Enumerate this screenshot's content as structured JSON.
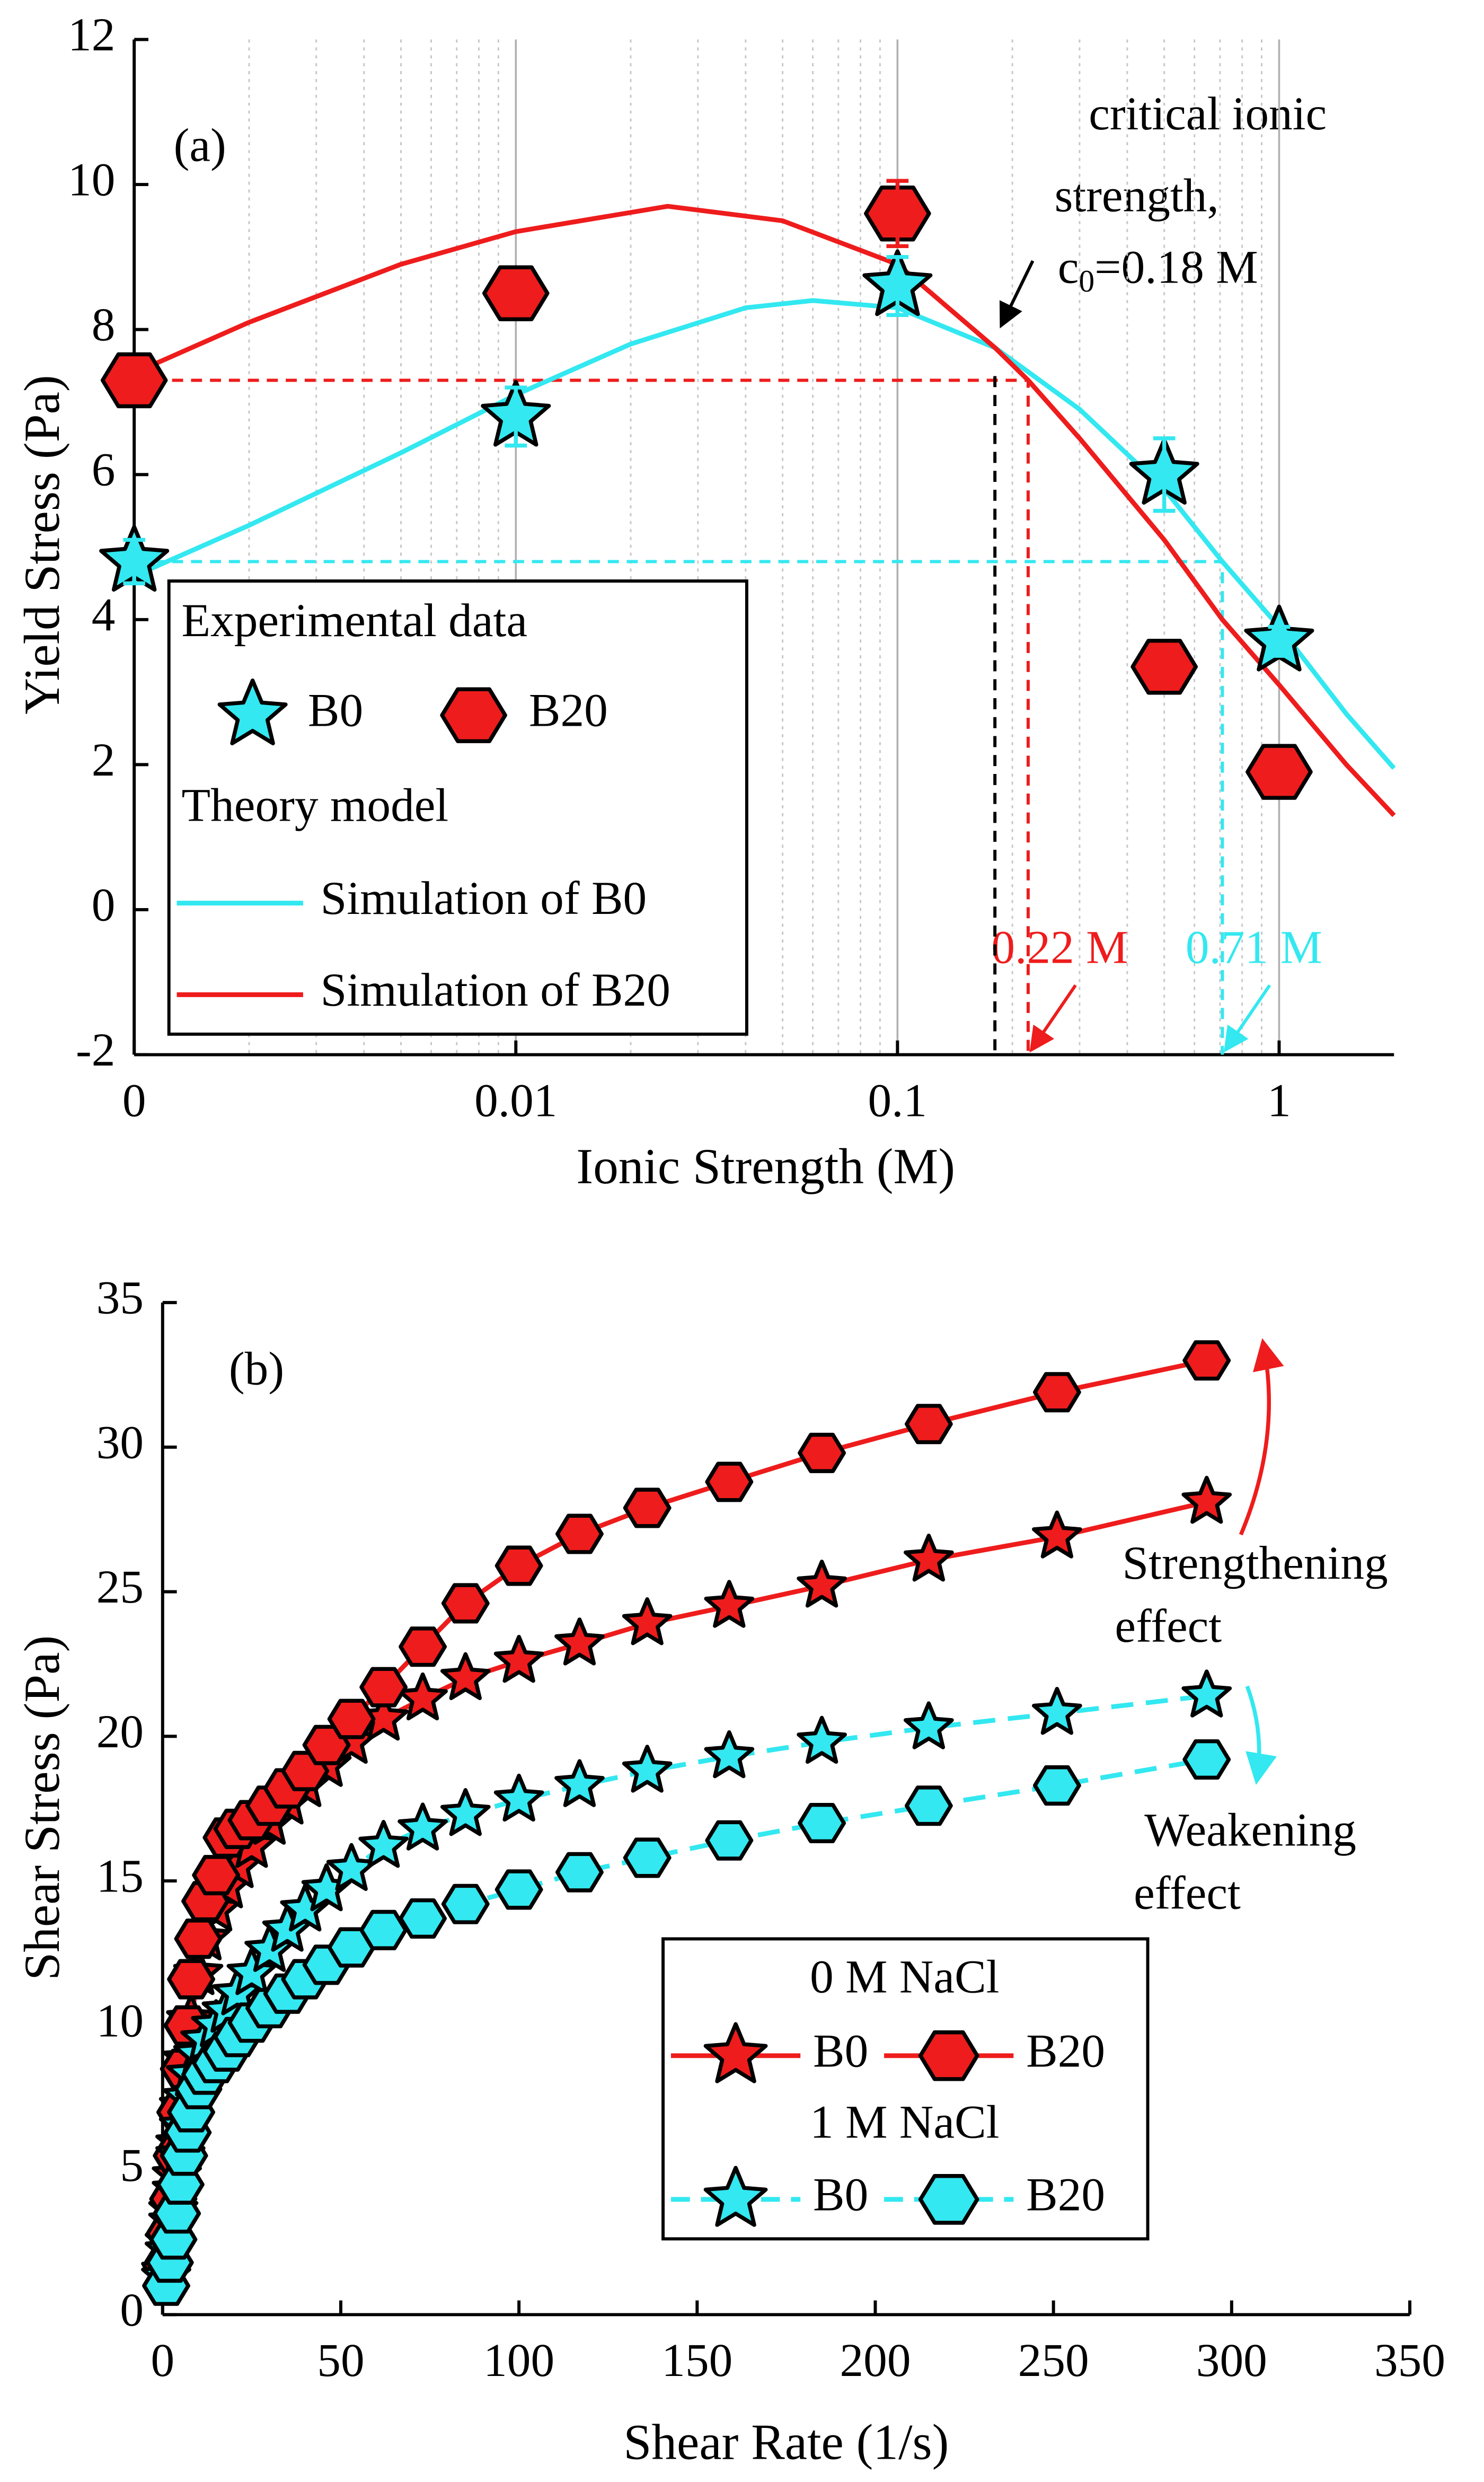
{
  "chart_data": [
    {
      "type": "scatter",
      "xscale": "log",
      "panel_label": "(a)",
      "xlabel": "Ionic Strength (M)",
      "ylabel": "Yield Stress (Pa)",
      "xlim": [
        0.001,
        2
      ],
      "ylim": [
        -2,
        12
      ],
      "xticks": [
        {
          "value": 0.001,
          "label": "0"
        },
        0.01,
        0.1,
        1
      ],
      "xminorticks": [
        0.002,
        0.003,
        0.004,
        0.005,
        0.006,
        0.007,
        0.008,
        0.009,
        0.02,
        0.03,
        0.04,
        0.05,
        0.06,
        0.07,
        0.08,
        0.09,
        0.2,
        0.3,
        0.4,
        0.5,
        0.6,
        0.7,
        0.8,
        0.9
      ],
      "yticks": [
        -2,
        0,
        2,
        4,
        6,
        8,
        10,
        12
      ],
      "grid": "x",
      "annotation_lines": [
        "critical ionic",
        "strength,"
      ],
      "critical_label": {
        "symbol": "c",
        "subscript": "0",
        "text": "=0.18 M"
      },
      "critical_point": {
        "x": 0.18,
        "y": 7.75,
        "color": "#000000"
      },
      "markers": [
        {
          "x": 0.22,
          "y": 7.3,
          "label": "0.22 M",
          "color": "#ee1c1c"
        },
        {
          "x": 0.71,
          "y": 4.8,
          "label": "0.71 M",
          "color": "#33e8f0"
        }
      ],
      "legend_groups": [
        "Experimental data",
        "Theory model"
      ],
      "series": [
        {
          "name": "B0",
          "kind": "scatter",
          "marker": "star",
          "color": "#33e8f0",
          "x": [
            0.001,
            0.01,
            0.1,
            0.5,
            1
          ],
          "values": [
            4.8,
            6.8,
            8.6,
            6.0,
            3.7
          ],
          "errors": [
            0.3,
            0.4,
            0.4,
            0.5,
            0.2
          ]
        },
        {
          "name": "B20",
          "kind": "scatter",
          "marker": "hexagon",
          "color": "#ee1c1c",
          "x": [
            0.001,
            0.01,
            0.1,
            0.5,
            1
          ],
          "values": [
            7.3,
            8.5,
            9.6,
            3.35,
            1.9
          ],
          "errors": [
            0.2,
            0.2,
            0.45,
            0.2,
            0.2
          ]
        },
        {
          "name": "Simulation of B0",
          "kind": "line",
          "color": "#33e8f0",
          "x": [
            0.001,
            0.002,
            0.005,
            0.01,
            0.02,
            0.04,
            0.06,
            0.1,
            0.18,
            0.3,
            0.5,
            0.71,
            1,
            1.5,
            2
          ],
          "values": [
            4.6,
            5.3,
            6.3,
            7.1,
            7.8,
            8.3,
            8.4,
            8.3,
            7.75,
            6.9,
            5.8,
            4.8,
            3.9,
            2.7,
            1.95
          ]
        },
        {
          "name": "Simulation of B20",
          "kind": "line",
          "color": "#ee1c1c",
          "x": [
            0.001,
            0.002,
            0.005,
            0.01,
            0.025,
            0.05,
            0.1,
            0.18,
            0.22,
            0.3,
            0.5,
            0.71,
            1,
            1.5,
            2
          ],
          "values": [
            7.4,
            8.1,
            8.9,
            9.35,
            9.7,
            9.5,
            8.9,
            7.75,
            7.3,
            6.5,
            5.1,
            4.0,
            3.1,
            2.0,
            1.3
          ]
        }
      ]
    },
    {
      "type": "line",
      "panel_label": "(b)",
      "xlabel": "Shear Rate (1/s)",
      "ylabel": "Shear Stress (Pa)",
      "xlim": [
        0,
        350
      ],
      "ylim": [
        0,
        35
      ],
      "xticks": [
        0,
        50,
        100,
        150,
        200,
        250,
        300,
        350
      ],
      "yticks": [
        0,
        5,
        10,
        15,
        20,
        25,
        30,
        35
      ],
      "annotation_lines": [
        "Strengthening",
        "effect",
        "Weakening",
        "effect"
      ],
      "legend_groups": [
        "0 M NaCl",
        "1 M NaCl"
      ],
      "x": [
        1,
        2,
        3,
        4,
        5,
        6,
        7,
        8,
        10,
        12,
        15,
        18,
        21,
        25,
        30,
        35,
        40,
        46,
        53,
        62,
        73,
        85,
        100,
        117,
        136,
        159,
        185,
        215,
        251,
        293
      ],
      "series": [
        {
          "name": "B0",
          "group": 0,
          "marker": "star",
          "color": "#ee1c1c",
          "style": "solid",
          "values": [
            1.5,
            2.5,
            3.6,
            4.8,
            5.9,
            7.2,
            8.8,
            10.2,
            11.8,
            13.0,
            14.0,
            14.8,
            15.5,
            16.2,
            17.0,
            17.7,
            18.3,
            19.0,
            19.8,
            20.6,
            21.3,
            22.0,
            22.6,
            23.2,
            23.9,
            24.5,
            25.2,
            26.1,
            26.9,
            28.1
          ]
        },
        {
          "name": "B20",
          "group": 0,
          "marker": "hexagon",
          "color": "#ee1c1c",
          "style": "solid",
          "values": [
            1.7,
            2.8,
            4.0,
            5.5,
            7.0,
            8.5,
            10.0,
            11.6,
            13.0,
            14.3,
            15.2,
            16.5,
            16.8,
            17.1,
            17.6,
            18.2,
            18.8,
            19.7,
            20.6,
            21.7,
            23.1,
            24.6,
            25.9,
            27.0,
            27.9,
            28.8,
            29.8,
            30.8,
            31.9,
            33.0
          ]
        },
        {
          "name": "B0",
          "group": 1,
          "marker": "star",
          "color": "#33e8f0",
          "style": "dashed",
          "values": [
            1.3,
            2.2,
            3.2,
            4.3,
            5.5,
            6.5,
            7.5,
            8.3,
            9.0,
            9.5,
            10.0,
            10.5,
            11.1,
            11.8,
            12.6,
            13.3,
            14.0,
            14.7,
            15.4,
            16.2,
            16.8,
            17.3,
            17.8,
            18.3,
            18.8,
            19.3,
            19.8,
            20.3,
            20.8,
            21.4
          ]
        },
        {
          "name": "B20",
          "group": 1,
          "marker": "hexagon",
          "color": "#33e8f0",
          "style": "dashed",
          "values": [
            1.0,
            1.8,
            2.6,
            3.5,
            4.5,
            5.5,
            6.3,
            7.0,
            7.8,
            8.3,
            8.7,
            9.1,
            9.6,
            10.1,
            10.6,
            11.1,
            11.6,
            12.1,
            12.7,
            13.3,
            13.7,
            14.2,
            14.7,
            15.3,
            15.8,
            16.4,
            17.0,
            17.6,
            18.3,
            19.2
          ]
        }
      ]
    }
  ]
}
